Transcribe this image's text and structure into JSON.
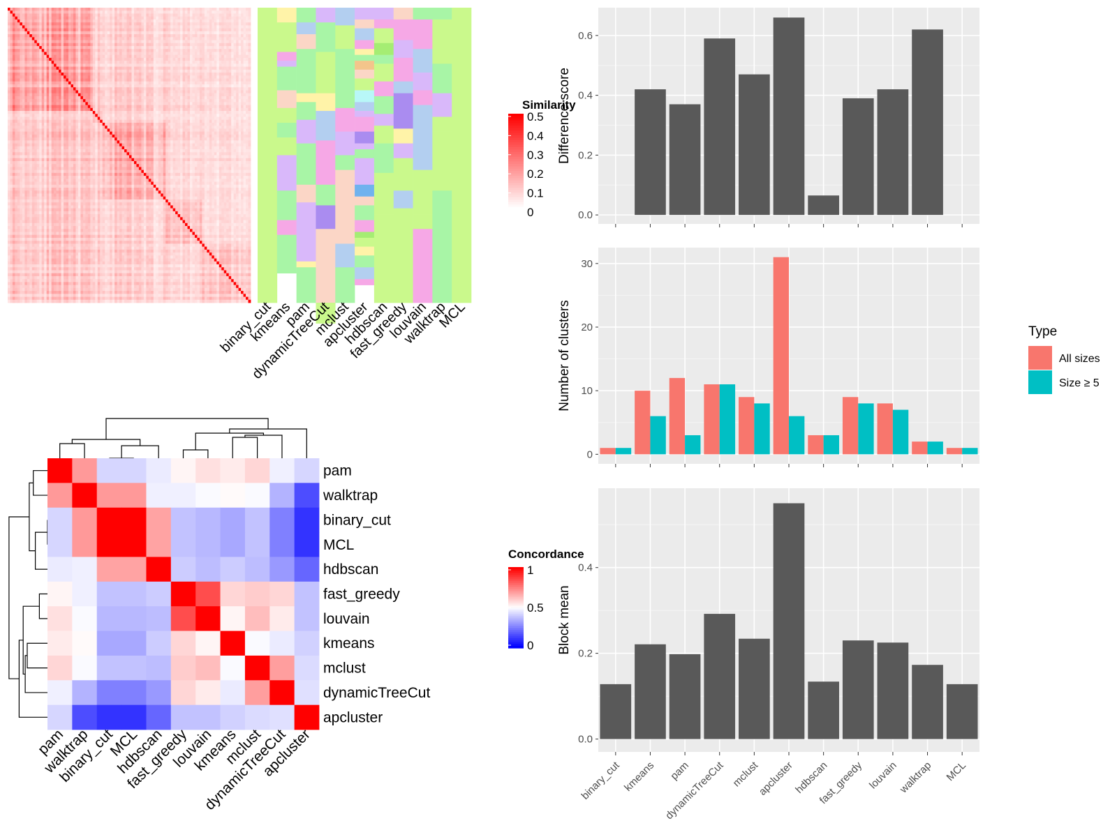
{
  "colors": {
    "similarity_high": "#ff0000",
    "similarity_low": "#ffffff",
    "concordance_high": "#ff0000",
    "concordance_mid": "#ffffff",
    "concordance_low": "#0000ff",
    "bar_fill": "#595959",
    "panel_bg": "#ebebeb",
    "all_sizes": "#f8766d",
    "size_ge5": "#00bfc4"
  },
  "chart_data": [
    {
      "type": "heatmap",
      "id": "similarity_heatmap",
      "n_terms": 100,
      "legend_title": "Similarity",
      "legend_ticks": [
        "0.5",
        "0.4",
        "0.3",
        "0.2",
        "0.1",
        "0"
      ],
      "value_range": [
        0,
        0.5
      ],
      "block_sizes": [
        35,
        4,
        26,
        15,
        20
      ]
    },
    {
      "type": "heatmap",
      "id": "cluster_assignment_heatmap",
      "columns": [
        "binary_cut",
        "kmeans",
        "pam",
        "dynamicTreeCut",
        "mclust",
        "apcluster",
        "hdbscan",
        "fast_greedy",
        "louvain",
        "walktrap",
        "MCL"
      ],
      "palette": [
        "#caf98c",
        "#a8f5a6",
        "#f6a8e6",
        "#d9b8fa",
        "#fbd6c6",
        "#fff3a8",
        "#b3cff0",
        "#aa8cf0",
        "#f3c58b",
        "#b8f7f8",
        "#70b2ee",
        "#a5ed73"
      ],
      "segments": [
        [
          [
            100,
            0
          ]
        ],
        [
          [
            5,
            5
          ],
          [
            10,
            0
          ],
          [
            3,
            2
          ],
          [
            2,
            3
          ],
          [
            8,
            1
          ],
          [
            6,
            4
          ],
          [
            5,
            0
          ],
          [
            5,
            1
          ],
          [
            6,
            0
          ],
          [
            12,
            3
          ],
          [
            10,
            1
          ],
          [
            5,
            2
          ],
          [
            13,
            1
          ]
        ],
        [
          [
            5,
            1
          ],
          [
            4,
            6
          ],
          [
            5,
            4
          ],
          [
            15,
            1
          ],
          [
            3,
            5
          ],
          [
            6,
            1
          ],
          [
            8,
            3
          ],
          [
            14,
            1
          ],
          [
            6,
            4
          ],
          [
            20,
            3
          ],
          [
            2,
            5
          ],
          [
            12,
            1
          ]
        ],
        [
          [
            5,
            3
          ],
          [
            10,
            1
          ],
          [
            14,
            0
          ],
          [
            6,
            5
          ],
          [
            10,
            6
          ],
          [
            15,
            2
          ],
          [
            7,
            1
          ],
          [
            8,
            7
          ],
          [
            25,
            4
          ],
          [
            7,
            0
          ]
        ],
        [
          [
            6,
            6
          ],
          [
            8,
            0
          ],
          [
            20,
            1
          ],
          [
            8,
            2
          ],
          [
            8,
            3
          ],
          [
            5,
            1
          ],
          [
            25,
            4
          ],
          [
            8,
            6
          ],
          [
            12,
            1
          ]
        ],
        [
          [
            4,
            3
          ],
          [
            3,
            4
          ],
          [
            4,
            6
          ],
          [
            3,
            2
          ],
          [
            2,
            5
          ],
          [
            2,
            1
          ],
          [
            3,
            8
          ],
          [
            3,
            4
          ],
          [
            4,
            0
          ],
          [
            4,
            9
          ],
          [
            3,
            6
          ],
          [
            2,
            3
          ],
          [
            5,
            2
          ],
          [
            4,
            7
          ],
          [
            2,
            3
          ],
          [
            3,
            1
          ],
          [
            9,
            3
          ],
          [
            4,
            10
          ],
          [
            3,
            4
          ],
          [
            5,
            1
          ],
          [
            4,
            2
          ],
          [
            2,
            11
          ],
          [
            3,
            0
          ],
          [
            3,
            5
          ],
          [
            4,
            1
          ],
          [
            4,
            6
          ],
          [
            2,
            2
          ]
        ],
        [
          [
            4,
            3
          ],
          [
            3,
            2
          ],
          [
            5,
            0
          ],
          [
            4,
            11
          ],
          [
            3,
            1
          ],
          [
            6,
            0
          ],
          [
            5,
            2
          ],
          [
            6,
            1
          ],
          [
            4,
            3
          ],
          [
            6,
            0
          ],
          [
            10,
            1
          ],
          [
            14,
            0
          ],
          [
            30,
            0
          ]
        ],
        [
          [
            4,
            4
          ],
          [
            7,
            2
          ],
          [
            6,
            3
          ],
          [
            8,
            2
          ],
          [
            4,
            6
          ],
          [
            12,
            7
          ],
          [
            5,
            5
          ],
          [
            5,
            3
          ],
          [
            11,
            0
          ],
          [
            6,
            6
          ],
          [
            7,
            0
          ],
          [
            25,
            0
          ]
        ],
        [
          [
            4,
            1
          ],
          [
            10,
            2
          ],
          [
            8,
            6
          ],
          [
            6,
            3
          ],
          [
            5,
            2
          ],
          [
            22,
            6
          ],
          [
            15,
            0
          ],
          [
            5,
            0
          ],
          [
            25,
            2
          ]
        ],
        [
          [
            4,
            1
          ],
          [
            15,
            0
          ],
          [
            10,
            1
          ],
          [
            8,
            3
          ],
          [
            5,
            0
          ],
          [
            20,
            0
          ],
          [
            38,
            1
          ]
        ],
        [
          [
            100,
            0
          ]
        ]
      ]
    },
    {
      "type": "heatmap",
      "id": "concordance_heatmap",
      "legend_title": "Concordance",
      "legend_ticks": [
        "1",
        "0.5",
        "0"
      ],
      "value_range": [
        0,
        1
      ],
      "labels": [
        "pam",
        "walktrap",
        "binary_cut",
        "MCL",
        "hdbscan",
        "fast_greedy",
        "louvain",
        "kmeans",
        "mclust",
        "dynamicTreeCut",
        "apcluster"
      ],
      "matrix": [
        [
          1.0,
          0.7,
          0.42,
          0.42,
          0.46,
          0.52,
          0.56,
          0.54,
          0.58,
          0.47,
          0.42
        ],
        [
          0.7,
          1.0,
          0.7,
          0.7,
          0.47,
          0.47,
          0.49,
          0.51,
          0.49,
          0.35,
          0.15
        ],
        [
          0.42,
          0.7,
          1.0,
          1.0,
          0.68,
          0.38,
          0.36,
          0.33,
          0.38,
          0.25,
          0.1
        ],
        [
          0.42,
          0.7,
          1.0,
          1.0,
          0.68,
          0.38,
          0.36,
          0.33,
          0.38,
          0.25,
          0.1
        ],
        [
          0.46,
          0.47,
          0.68,
          0.68,
          1.0,
          0.4,
          0.37,
          0.4,
          0.37,
          0.3,
          0.2
        ],
        [
          0.52,
          0.47,
          0.38,
          0.38,
          0.4,
          1.0,
          0.85,
          0.58,
          0.6,
          0.58,
          0.38
        ],
        [
          0.56,
          0.49,
          0.36,
          0.36,
          0.37,
          0.85,
          1.0,
          0.52,
          0.63,
          0.54,
          0.38
        ],
        [
          0.54,
          0.51,
          0.33,
          0.33,
          0.4,
          0.58,
          0.52,
          1.0,
          0.49,
          0.46,
          0.41
        ],
        [
          0.58,
          0.49,
          0.38,
          0.38,
          0.37,
          0.6,
          0.63,
          0.49,
          1.0,
          0.69,
          0.43
        ],
        [
          0.47,
          0.35,
          0.25,
          0.25,
          0.3,
          0.58,
          0.54,
          0.46,
          0.69,
          1.0,
          0.44
        ],
        [
          0.42,
          0.15,
          0.1,
          0.1,
          0.2,
          0.38,
          0.38,
          0.41,
          0.43,
          0.44,
          1.0
        ]
      ],
      "dendrogram_merges": [
        [
          2,
          3,
          0.0
        ],
        [
          4,
          11,
          0.3
        ],
        [
          0,
          1,
          0.35
        ],
        [
          13,
          12,
          0.45
        ],
        [
          5,
          6,
          0.2
        ],
        [
          7,
          8,
          0.5
        ],
        [
          16,
          9,
          0.55
        ],
        [
          15,
          17,
          0.6
        ],
        [
          18,
          10,
          0.7
        ],
        [
          14,
          19,
          0.95
        ]
      ]
    },
    {
      "type": "bar",
      "id": "difference_score",
      "categories": [
        "binary_cut",
        "kmeans",
        "pam",
        "dynamicTreeCut",
        "mclust",
        "apcluster",
        "hdbscan",
        "fast_greedy",
        "louvain",
        "walktrap",
        "MCL"
      ],
      "values": [
        0,
        0.42,
        0.37,
        0.59,
        0.47,
        0.66,
        0.065,
        0.39,
        0.42,
        0.62,
        0
      ],
      "ylabel": "Difference score",
      "ylim": [
        -0.03,
        0.693
      ],
      "yticks": [
        "0.0",
        "0.2",
        "0.4",
        "0.6"
      ],
      "grid": true
    },
    {
      "type": "bar",
      "id": "number_of_clusters",
      "categories": [
        "binary_cut",
        "kmeans",
        "pam",
        "dynamicTreeCut",
        "mclust",
        "apcluster",
        "hdbscan",
        "fast_greedy",
        "louvain",
        "walktrap",
        "MCL"
      ],
      "series": [
        {
          "name": "All sizes",
          "values": [
            1,
            10,
            12,
            11,
            9,
            31,
            3,
            9,
            8,
            2,
            1
          ]
        },
        {
          "name": "Size ≥ 5",
          "values": [
            1,
            6,
            3,
            11,
            8,
            6,
            3,
            8,
            7,
            2,
            1
          ]
        }
      ],
      "ylabel": "Number of clusters",
      "ylim": [
        -1.5,
        32.5
      ],
      "yticks": [
        "0",
        "10",
        "20",
        "30"
      ],
      "legend_title": "Type",
      "legend_position": "right",
      "grid": true
    },
    {
      "type": "bar",
      "id": "block_mean",
      "categories": [
        "binary_cut",
        "kmeans",
        "pam",
        "dynamicTreeCut",
        "mclust",
        "apcluster",
        "hdbscan",
        "fast_greedy",
        "louvain",
        "walktrap",
        "MCL"
      ],
      "values": [
        0.128,
        0.221,
        0.198,
        0.292,
        0.234,
        0.55,
        0.134,
        0.23,
        0.225,
        0.173,
        0.128
      ],
      "ylabel": "Block mean",
      "ylim": [
        -0.03,
        0.585
      ],
      "yticks": [
        "0.0",
        "0.2",
        "0.4"
      ],
      "grid": true
    }
  ]
}
